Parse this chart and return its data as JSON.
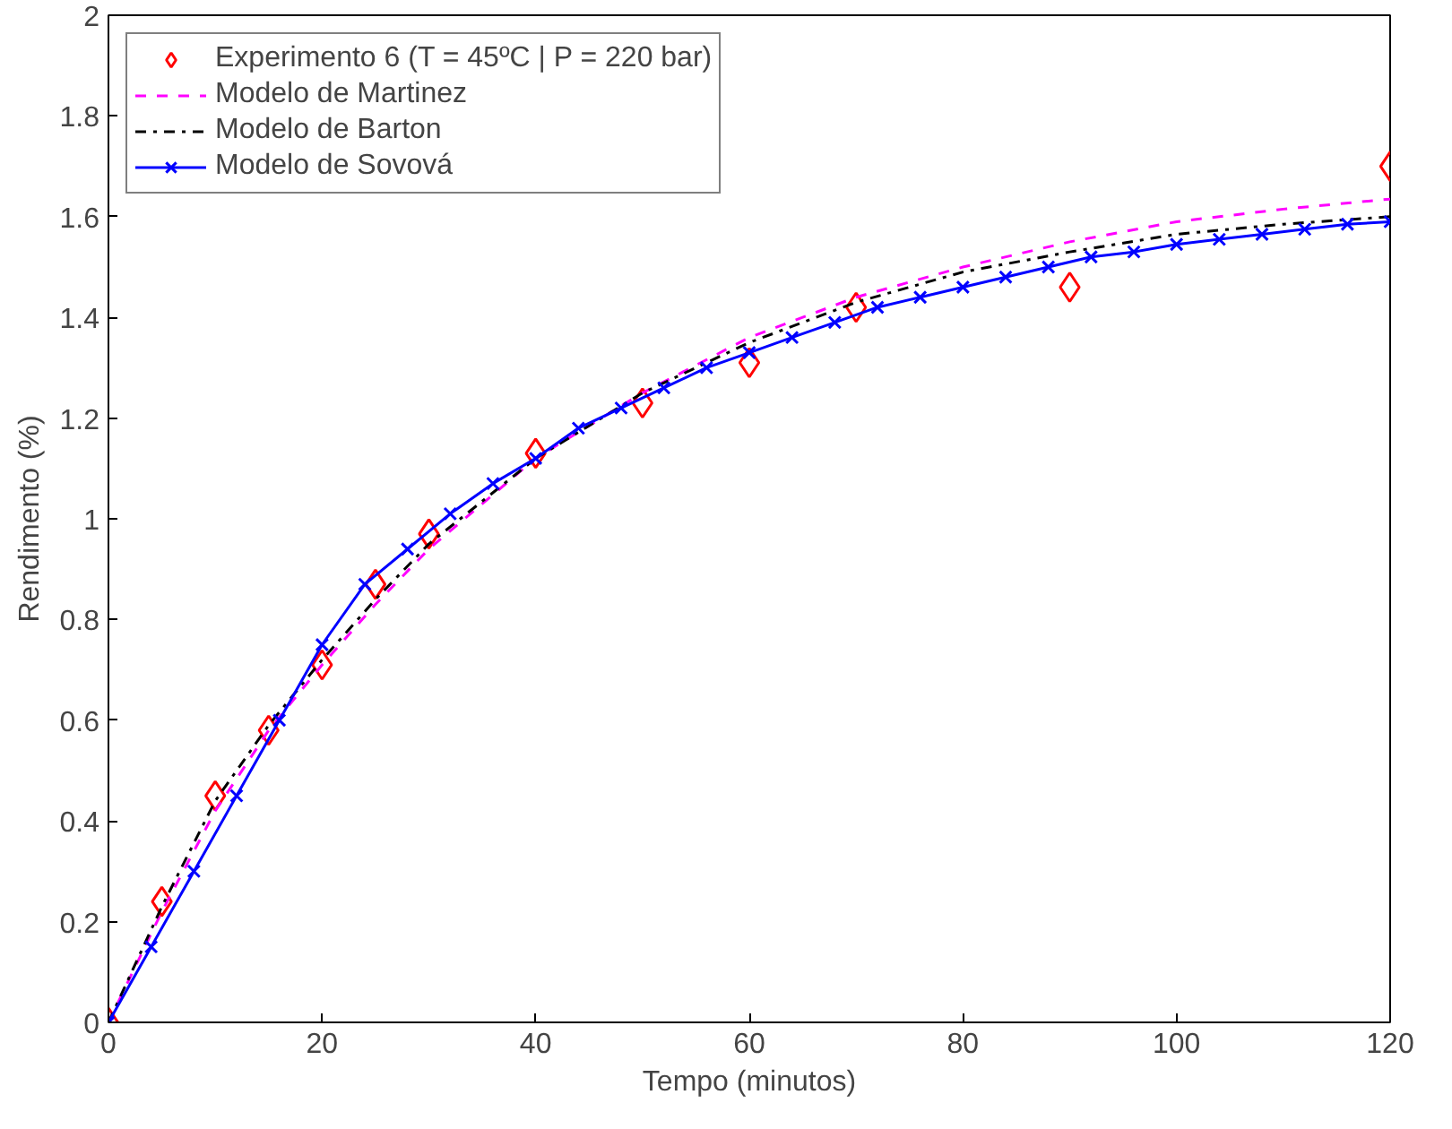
{
  "chart_data": {
    "type": "line",
    "xlabel": "Tempo (minutos)",
    "ylabel": "Rendimento (%)",
    "xlim": [
      0,
      120
    ],
    "ylim": [
      0,
      2
    ],
    "xticks": [
      0,
      20,
      40,
      60,
      80,
      100,
      120
    ],
    "yticks": [
      0,
      0.2,
      0.4,
      0.6,
      0.8,
      1,
      1.2,
      1.4,
      1.6,
      1.8,
      2
    ],
    "grid": false,
    "legend": "top left",
    "series": [
      {
        "name": "Experimento 6 (T = 45ºC | P = 220 bar)",
        "type": "scatter",
        "marker": "diamond",
        "color": "#ff0000",
        "x": [
          0,
          5,
          10,
          15,
          20,
          25,
          30,
          40,
          50,
          60,
          70,
          90,
          120
        ],
        "values": [
          0,
          0.24,
          0.45,
          0.58,
          0.71,
          0.87,
          0.97,
          1.13,
          1.23,
          1.31,
          1.42,
          1.46,
          1.7
        ]
      },
      {
        "name": "Modelo de Martinez",
        "line_style": "dashed",
        "marker": "none",
        "color": "#ff00ff",
        "x": [
          0,
          5,
          10,
          15,
          20,
          25,
          30,
          40,
          50,
          60,
          70,
          80,
          90,
          100,
          110,
          120
        ],
        "values": [
          0,
          0.22,
          0.42,
          0.58,
          0.71,
          0.83,
          0.94,
          1.12,
          1.25,
          1.36,
          1.44,
          1.5,
          1.55,
          1.59,
          1.615,
          1.635
        ]
      },
      {
        "name": "Modelo de Barton",
        "line_style": "dashdot",
        "marker": "none",
        "color": "#000000",
        "x": [
          0,
          5,
          10,
          15,
          20,
          25,
          30,
          40,
          50,
          60,
          70,
          80,
          90,
          100,
          110,
          120
        ],
        "values": [
          0,
          0.23,
          0.44,
          0.59,
          0.72,
          0.84,
          0.95,
          1.12,
          1.25,
          1.35,
          1.43,
          1.49,
          1.53,
          1.565,
          1.585,
          1.6
        ]
      },
      {
        "name": "Modelo de Sovová",
        "line_style": "solid",
        "marker": "cross",
        "color": "#0000ff",
        "x": [
          0,
          4,
          8,
          12,
          16,
          20,
          24,
          28,
          32,
          36,
          40,
          44,
          48,
          52,
          56,
          60,
          64,
          68,
          72,
          76,
          80,
          84,
          88,
          92,
          96,
          100,
          104,
          108,
          112,
          116,
          120
        ],
        "values": [
          0,
          0.15,
          0.3,
          0.45,
          0.6,
          0.75,
          0.87,
          0.94,
          1.01,
          1.07,
          1.12,
          1.18,
          1.22,
          1.26,
          1.3,
          1.33,
          1.36,
          1.39,
          1.42,
          1.44,
          1.46,
          1.48,
          1.5,
          1.52,
          1.53,
          1.545,
          1.555,
          1.565,
          1.575,
          1.585,
          1.59
        ]
      }
    ]
  }
}
